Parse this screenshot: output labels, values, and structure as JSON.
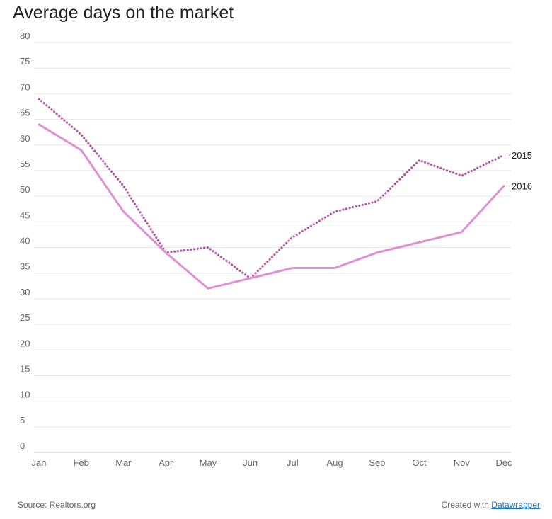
{
  "chart_data": {
    "type": "line",
    "title": "Average days on the market",
    "xlabel": "",
    "ylabel": "",
    "categories": [
      "Jan",
      "Feb",
      "Mar",
      "Apr",
      "May",
      "Jun",
      "Jul",
      "Aug",
      "Sep",
      "Oct",
      "Nov",
      "Dec"
    ],
    "ylim": [
      0,
      80
    ],
    "yticks": [
      0,
      5,
      10,
      15,
      20,
      25,
      30,
      35,
      40,
      45,
      50,
      55,
      60,
      65,
      70,
      75,
      80
    ],
    "grid": true,
    "series": [
      {
        "name": "2015",
        "style": "dotted",
        "color": "#b05ca8",
        "values": [
          69,
          62,
          52,
          39,
          40,
          34,
          42,
          47,
          49,
          57,
          54,
          58
        ]
      },
      {
        "name": "2016",
        "style": "solid",
        "color": "#e08fd2",
        "values": [
          64,
          59,
          47,
          39,
          32,
          34,
          36,
          36,
          39,
          41,
          43,
          52
        ]
      }
    ]
  },
  "footer": {
    "source": "Source: Realtors.org",
    "credit_prefix": "Created with ",
    "credit_link": "Datawrapper"
  }
}
